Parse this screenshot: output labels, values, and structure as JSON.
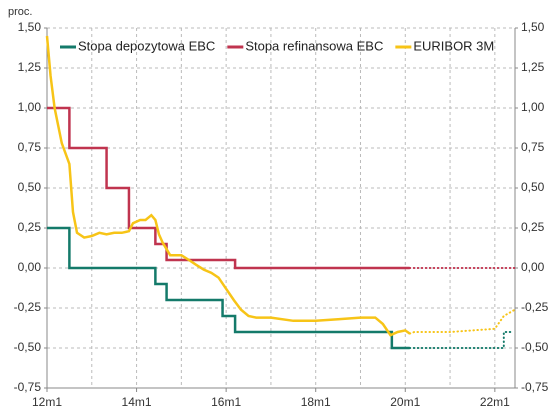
{
  "chart_data": {
    "type": "line",
    "y_unit": "proc.",
    "xlim": [
      2012,
      2022.45
    ],
    "xticks": [
      {
        "value": 2012,
        "label": "12m1"
      },
      {
        "value": 2014,
        "label": "14m1"
      },
      {
        "value": 2016,
        "label": "16m1"
      },
      {
        "value": 2018,
        "label": "18m1"
      },
      {
        "value": 2020,
        "label": "20m1"
      },
      {
        "value": 2022,
        "label": "22m1"
      }
    ],
    "xgrid": [
      2013,
      2014,
      2015,
      2016,
      2017,
      2018,
      2019,
      2020,
      2021,
      2022
    ],
    "ylim": [
      -0.75,
      1.5
    ],
    "yticks": [
      {
        "value": 1.5,
        "label": "1,50"
      },
      {
        "value": 1.25,
        "label": "1,25"
      },
      {
        "value": 1.0,
        "label": "1,00"
      },
      {
        "value": 0.75,
        "label": "0,75"
      },
      {
        "value": 0.5,
        "label": "0,50"
      },
      {
        "value": 0.25,
        "label": "0,25"
      },
      {
        "value": 0,
        "label": "0,00"
      },
      {
        "value": -0.25,
        "label": "-0,25"
      },
      {
        "value": -0.5,
        "label": "-0,50"
      },
      {
        "value": -0.75,
        "label": "-0,75"
      }
    ],
    "grid": true,
    "legend": "top",
    "series": [
      {
        "name": "Stopa depozytowa EBC",
        "color": "#147a6a",
        "step": true,
        "x": [
          2012,
          2012.5,
          2014.42,
          2014.67,
          2015.92,
          2016.2,
          2019.7,
          2020.1
        ],
        "values": [
          0.25,
          0,
          -0.1,
          -0.2,
          -0.3,
          -0.4,
          -0.5,
          -0.5
        ],
        "forecast_x": [
          2020.1,
          2022.0,
          2022.2,
          2022.4
        ],
        "forecast_values": [
          -0.5,
          -0.5,
          -0.4,
          -0.4
        ]
      },
      {
        "name": "Stopa refinansowa EBC",
        "color": "#c0344f",
        "step": true,
        "x": [
          2012,
          2012.5,
          2013.33,
          2013.83,
          2014.42,
          2014.67,
          2016.2,
          2020.1
        ],
        "values": [
          1.0,
          0.75,
          0.5,
          0.25,
          0.15,
          0.05,
          0,
          0
        ],
        "forecast_x": [
          2020.1,
          2022.45
        ],
        "forecast_values": [
          0,
          0
        ]
      },
      {
        "name": "EURIBOR 3M",
        "color": "#f7c417",
        "step": false,
        "x": [
          2012.0,
          2012.08,
          2012.17,
          2012.33,
          2012.5,
          2012.58,
          2012.67,
          2012.83,
          2013.0,
          2013.17,
          2013.33,
          2013.5,
          2013.67,
          2013.83,
          2013.92,
          2014.08,
          2014.2,
          2014.33,
          2014.42,
          2014.5,
          2014.58,
          2014.75,
          2015.0,
          2015.17,
          2015.33,
          2015.5,
          2015.67,
          2015.83,
          2016.0,
          2016.17,
          2016.33,
          2016.5,
          2016.67,
          2017.0,
          2017.5,
          2018.0,
          2018.5,
          2019.0,
          2019.33,
          2019.5,
          2019.67,
          2019.83,
          2020.0,
          2020.1
        ],
        "values": [
          1.45,
          1.2,
          1.0,
          0.78,
          0.65,
          0.35,
          0.22,
          0.19,
          0.2,
          0.22,
          0.21,
          0.22,
          0.22,
          0.23,
          0.28,
          0.3,
          0.3,
          0.33,
          0.3,
          0.21,
          0.16,
          0.08,
          0.08,
          0.05,
          0.02,
          -0.01,
          -0.03,
          -0.06,
          -0.13,
          -0.2,
          -0.26,
          -0.3,
          -0.31,
          -0.31,
          -0.33,
          -0.33,
          -0.32,
          -0.31,
          -0.31,
          -0.35,
          -0.42,
          -0.4,
          -0.39,
          -0.41
        ],
        "forecast_x": [
          2020.1,
          2020.2,
          2021.0,
          2021.5,
          2022.0,
          2022.2,
          2022.45
        ],
        "forecast_values": [
          -0.41,
          -0.4,
          -0.4,
          -0.39,
          -0.38,
          -0.3,
          -0.26
        ]
      }
    ]
  }
}
